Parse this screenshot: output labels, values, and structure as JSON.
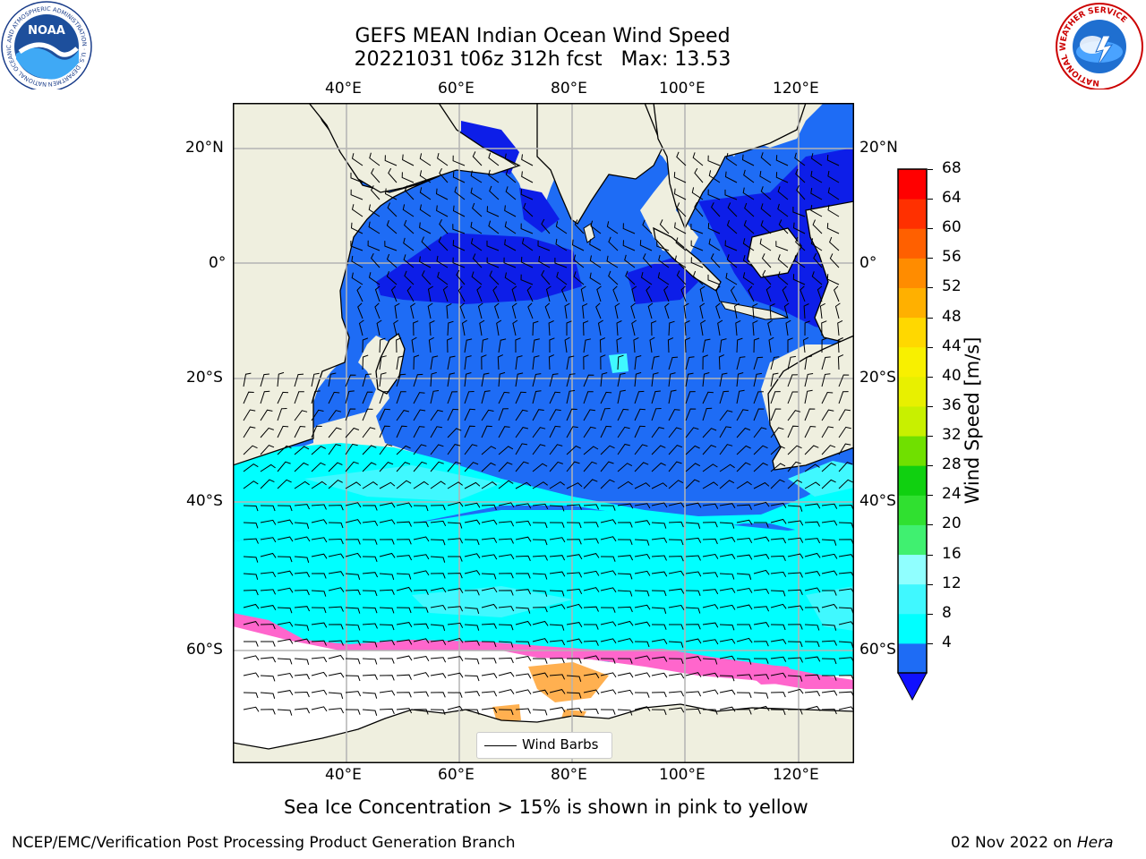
{
  "header": {
    "title_line1": "GEFS MEAN Indian Ocean Wind Speed",
    "title_line2": "20221031 t06z 312h fcst   Max: 13.53"
  },
  "map": {
    "lon_ticks_top": [
      "40°E",
      "60°E",
      "80°E",
      "100°E",
      "120°E"
    ],
    "lon_ticks_bottom": [
      "40°E",
      "60°E",
      "80°E",
      "100°E",
      "120°E"
    ],
    "lat_ticks_left": [
      "20°N",
      "0°",
      "20°S",
      "40°S",
      "60°S"
    ],
    "lat_ticks_right": [
      "20°N",
      "0°",
      "20°S",
      "40°S",
      "60°S"
    ],
    "lon_values": [
      40,
      60,
      80,
      100,
      120
    ],
    "lat_values": [
      20,
      0,
      -20,
      -40,
      -60
    ],
    "extent": {
      "lon_min": 20,
      "lon_max": 130,
      "lat_min": -75,
      "lat_max": 28
    },
    "legend_label": "Wind Barbs",
    "colors": {
      "land": "#efefdf",
      "ice_pink": "#ff66cc",
      "ice_orange": "#ffb050",
      "ice_white": "#ffffff"
    }
  },
  "colorbar": {
    "label": "Wind Speed [m/s]",
    "ticks": [
      "68",
      "64",
      "60",
      "56",
      "52",
      "48",
      "44",
      "40",
      "36",
      "32",
      "28",
      "24",
      "20",
      "16",
      "12",
      "8",
      "4"
    ],
    "colors": [
      "#1e6cf5",
      "#00ffff",
      "#40f8ff",
      "#90ffff",
      "#40f070",
      "#30e030",
      "#10d010",
      "#70e000",
      "#c8f000",
      "#e8f000",
      "#f8f000",
      "#ffd800",
      "#ffb000",
      "#ff8c00",
      "#ff6000",
      "#ff3000",
      "#ff0000"
    ],
    "extend_color": "#1010ff"
  },
  "caption": "Sea Ice Concentration > 15% is shown in pink to yellow",
  "footer": {
    "left": "NCEP/EMC/Verification Post Processing Product Generation Branch",
    "right_date": "02 Nov 2022 on ",
    "right_host": "Hera"
  },
  "logos": {
    "noaa_text": "NOAA",
    "noaa_ring": "NATIONAL OCEANIC AND ATMOSPHERIC ADMINISTRATION · U.S. DEPARTMENT OF COMMERCE",
    "nws_ring": "NATIONAL WEATHER SERVICE"
  }
}
